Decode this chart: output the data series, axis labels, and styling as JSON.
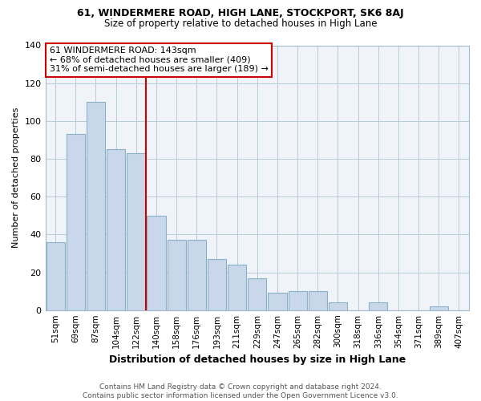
{
  "title": "61, WINDERMERE ROAD, HIGH LANE, STOCKPORT, SK6 8AJ",
  "subtitle": "Size of property relative to detached houses in High Lane",
  "xlabel": "Distribution of detached houses by size in High Lane",
  "ylabel": "Number of detached properties",
  "categories": [
    "51sqm",
    "69sqm",
    "87sqm",
    "104sqm",
    "122sqm",
    "140sqm",
    "158sqm",
    "176sqm",
    "193sqm",
    "211sqm",
    "229sqm",
    "247sqm",
    "265sqm",
    "282sqm",
    "300sqm",
    "318sqm",
    "336sqm",
    "354sqm",
    "371sqm",
    "389sqm",
    "407sqm"
  ],
  "values": [
    36,
    93,
    110,
    85,
    83,
    50,
    37,
    37,
    27,
    24,
    17,
    9,
    10,
    10,
    4,
    0,
    4,
    0,
    0,
    2,
    0
  ],
  "bar_color": "#c8d8ea",
  "bar_edge_color": "#8ab0c8",
  "vline_x": 4.5,
  "vline_color": "#cc0000",
  "annotation_title": "61 WINDERMERE ROAD: 143sqm",
  "annotation_line1": "← 68% of detached houses are smaller (409)",
  "annotation_line2": "31% of semi-detached houses are larger (189) →",
  "annotation_box_color": "#ffffff",
  "annotation_box_edge": "#cc0000",
  "ylim": [
    0,
    140
  ],
  "yticks": [
    0,
    20,
    40,
    60,
    80,
    100,
    120,
    140
  ],
  "footer_line1": "Contains HM Land Registry data © Crown copyright and database right 2024.",
  "footer_line2": "Contains public sector information licensed under the Open Government Licence v3.0.",
  "bg_color": "#f0f4f8",
  "grid_color": "#b8ccd8",
  "title_fontsize": 9,
  "subtitle_fontsize": 8.5
}
